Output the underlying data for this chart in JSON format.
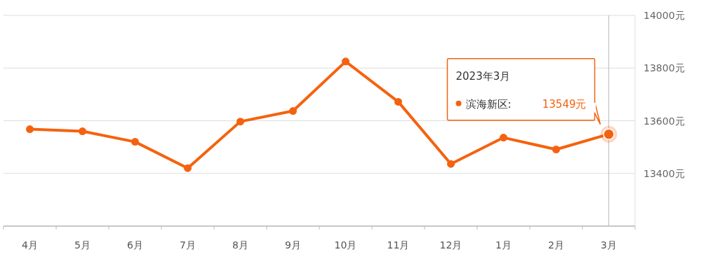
{
  "chart_data": {
    "type": "line",
    "categories": [
      "4月",
      "5月",
      "6月",
      "7月",
      "8月",
      "9月",
      "10月",
      "11月",
      "12月",
      "1月",
      "2月",
      "3月"
    ],
    "series": [
      {
        "name": "滨海新区:",
        "color": "#f5620f",
        "values": [
          13568,
          13560,
          13520,
          13420,
          13597,
          13637,
          13825,
          13672,
          13436,
          13536,
          13491,
          13549
        ],
        "value_labels": [
          null,
          null,
          null,
          null,
          null,
          null,
          null,
          null,
          null,
          null,
          null,
          "13549元"
        ]
      }
    ],
    "ylim": [
      13200,
      14000
    ],
    "yticks": [
      {
        "value": 13200,
        "label": null
      },
      {
        "value": 13400,
        "label": "13400元"
      },
      {
        "value": 13600,
        "label": "13600元"
      },
      {
        "value": 13800,
        "label": "13800元"
      },
      {
        "value": 14000,
        "label": "14000元"
      }
    ],
    "grid": "y",
    "marker": "circle",
    "line_style": "solid",
    "legend": "top right",
    "annotations": [
      "2023年3月"
    ],
    "ref_lines": [
      {
        "axis": "x",
        "value": "3月",
        "color": "#bbbbbb"
      }
    ]
  }
}
